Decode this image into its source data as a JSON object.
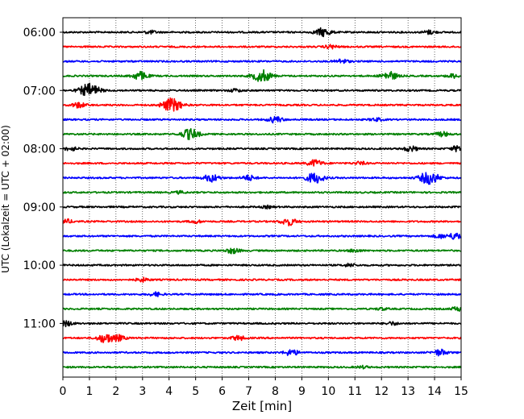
{
  "chart_data": {
    "type": "line",
    "title": "",
    "xlabel": "Zeit  [min]",
    "ylabel": "UTC (Lokalzeit = UTC + 02:00)",
    "xlim": [
      0,
      15
    ],
    "xticks": [
      "0",
      "1",
      "2",
      "3",
      "4",
      "5",
      "6",
      "7",
      "8",
      "9",
      "10",
      "11",
      "12",
      "13",
      "14",
      "15"
    ],
    "yticks": [
      {
        "label": "06:00",
        "row": 0
      },
      {
        "label": "07:00",
        "row": 4
      },
      {
        "label": "08:00",
        "row": 8
      },
      {
        "label": "09:00",
        "row": 12
      },
      {
        "label": "10:00",
        "row": 16
      },
      {
        "label": "11:00",
        "row": 20
      }
    ],
    "start_time": "06:00",
    "trace_minutes": 15,
    "grid": "vertical-dotted",
    "colors": [
      "#000000",
      "#ff0000",
      "#0000ff",
      "#008000"
    ],
    "traces": [
      {
        "start": "06:00",
        "color": "#000000",
        "events": [
          [
            9.8,
            0.55
          ],
          [
            13.8,
            0.25
          ],
          [
            3.3,
            0.2
          ]
        ]
      },
      {
        "start": "06:15",
        "color": "#ff0000",
        "events": [
          [
            10.1,
            0.25
          ]
        ]
      },
      {
        "start": "06:30",
        "color": "#0000ff",
        "events": [
          [
            10.5,
            0.3
          ]
        ]
      },
      {
        "start": "06:45",
        "color": "#008000",
        "events": [
          [
            2.9,
            0.55
          ],
          [
            7.5,
            0.8
          ],
          [
            12.3,
            0.55
          ],
          [
            14.7,
            0.25
          ]
        ]
      },
      {
        "start": "07:00",
        "color": "#000000",
        "events": [
          [
            1.0,
            0.9
          ],
          [
            6.5,
            0.2
          ]
        ]
      },
      {
        "start": "07:15",
        "color": "#ff0000",
        "events": [
          [
            0.6,
            0.35
          ],
          [
            4.1,
            0.9
          ]
        ]
      },
      {
        "start": "07:30",
        "color": "#0000ff",
        "events": [
          [
            8.0,
            0.4
          ],
          [
            11.8,
            0.2
          ]
        ]
      },
      {
        "start": "07:45",
        "color": "#008000",
        "events": [
          [
            4.8,
            0.7
          ],
          [
            14.3,
            0.3
          ]
        ]
      },
      {
        "start": "08:00",
        "color": "#000000",
        "events": [
          [
            0.3,
            0.25
          ],
          [
            13.1,
            0.35
          ],
          [
            14.9,
            0.4
          ]
        ]
      },
      {
        "start": "08:15",
        "color": "#ff0000",
        "events": [
          [
            9.5,
            0.45
          ],
          [
            11.2,
            0.2
          ]
        ]
      },
      {
        "start": "08:30",
        "color": "#0000ff",
        "events": [
          [
            5.6,
            0.5
          ],
          [
            7.0,
            0.35
          ],
          [
            9.5,
            0.7
          ],
          [
            13.8,
            0.85
          ]
        ]
      },
      {
        "start": "08:45",
        "color": "#008000",
        "events": [
          [
            4.4,
            0.15
          ]
        ]
      },
      {
        "start": "09:00",
        "color": "#000000",
        "events": [
          [
            7.7,
            0.15
          ]
        ]
      },
      {
        "start": "09:15",
        "color": "#ff0000",
        "events": [
          [
            0.1,
            0.3
          ],
          [
            5.0,
            0.2
          ],
          [
            8.5,
            0.5
          ]
        ]
      },
      {
        "start": "09:30",
        "color": "#0000ff",
        "events": [
          [
            14.2,
            0.25
          ],
          [
            14.8,
            0.45
          ]
        ]
      },
      {
        "start": "09:45",
        "color": "#008000",
        "events": [
          [
            6.4,
            0.35
          ],
          [
            11.0,
            0.2
          ]
        ]
      },
      {
        "start": "10:00",
        "color": "#000000",
        "events": [
          [
            10.8,
            0.2
          ]
        ]
      },
      {
        "start": "10:15",
        "color": "#ff0000",
        "events": [
          [
            3.0,
            0.25
          ]
        ]
      },
      {
        "start": "10:30",
        "color": "#0000ff",
        "events": [
          [
            3.5,
            0.25
          ]
        ]
      },
      {
        "start": "10:45",
        "color": "#008000",
        "events": [
          [
            14.9,
            0.3
          ],
          [
            12.0,
            0.15
          ]
        ]
      },
      {
        "start": "11:00",
        "color": "#000000",
        "events": [
          [
            0.1,
            0.35
          ],
          [
            12.4,
            0.2
          ]
        ]
      },
      {
        "start": "11:15",
        "color": "#ff0000",
        "events": [
          [
            1.6,
            0.6
          ],
          [
            2.1,
            0.35
          ],
          [
            6.6,
            0.3
          ]
        ]
      },
      {
        "start": "11:30",
        "color": "#0000ff",
        "events": [
          [
            8.6,
            0.4
          ],
          [
            14.2,
            0.4
          ]
        ]
      },
      {
        "start": "11:45",
        "color": "#008000",
        "events": [
          [
            11.3,
            0.15
          ]
        ]
      }
    ]
  }
}
